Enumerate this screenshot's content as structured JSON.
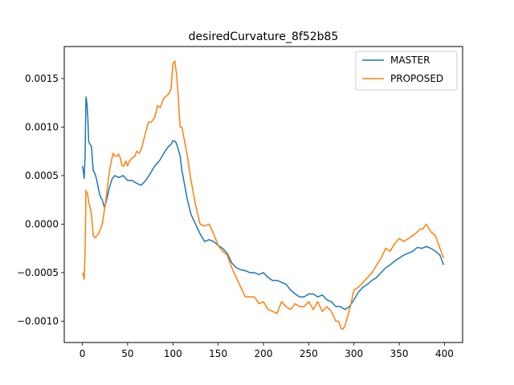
{
  "chart_data": {
    "type": "line",
    "title": "desiredCurvature_8f52b85",
    "xlabel": "",
    "ylabel": "",
    "xlim": [
      -20,
      420
    ],
    "ylim": [
      -0.00122,
      0.00183
    ],
    "xticks": [
      0,
      50,
      100,
      150,
      200,
      250,
      300,
      350,
      400
    ],
    "xtick_labels": [
      "0",
      "50",
      "100",
      "150",
      "200",
      "250",
      "300",
      "350",
      "400"
    ],
    "yticks": [
      -0.001,
      -0.0005,
      0.0,
      0.0005,
      0.001,
      0.0015
    ],
    "ytick_labels": [
      "−0.0010",
      "−0.0005",
      "0.0000",
      "0.0005",
      "0.0010",
      "0.0015"
    ],
    "grid": false,
    "legend_position": "top-right",
    "series": [
      {
        "name": "MASTER",
        "color": "#1f77b4",
        "x": [
          0,
          1,
          2,
          3,
          4,
          5,
          6,
          7,
          8,
          10,
          12,
          14,
          16,
          18,
          20,
          22,
          24,
          26,
          28,
          30,
          33,
          36,
          40,
          45,
          50,
          55,
          60,
          65,
          70,
          75,
          80,
          85,
          90,
          95,
          98,
          100,
          103,
          105,
          108,
          110,
          113,
          116,
          120,
          125,
          130,
          135,
          140,
          145,
          150,
          155,
          160,
          165,
          170,
          175,
          180,
          185,
          190,
          195,
          200,
          205,
          210,
          215,
          220,
          225,
          230,
          235,
          240,
          245,
          250,
          255,
          260,
          265,
          270,
          275,
          280,
          285,
          290,
          295,
          300,
          305,
          310,
          315,
          320,
          325,
          330,
          335,
          340,
          345,
          350,
          355,
          360,
          365,
          370,
          375,
          380,
          385,
          390,
          395,
          399
        ],
        "y": [
          0.0006,
          0.00055,
          0.00047,
          0.0007,
          0.00131,
          0.00125,
          0.0011,
          0.00085,
          0.00083,
          0.0008,
          0.00055,
          0.00052,
          0.00045,
          0.00035,
          0.00028,
          0.00025,
          0.00018,
          0.00022,
          0.0003,
          0.00038,
          0.00047,
          0.0005,
          0.00048,
          0.0005,
          0.00045,
          0.00045,
          0.00042,
          0.0004,
          0.00045,
          0.00052,
          0.0006,
          0.00065,
          0.00073,
          0.0008,
          0.00082,
          0.00086,
          0.00085,
          0.0008,
          0.0007,
          0.00055,
          0.0004,
          0.00025,
          0.0001,
          0.0,
          -0.0001,
          -0.00018,
          -0.00016,
          -0.00018,
          -0.00022,
          -0.00025,
          -0.0003,
          -0.0004,
          -0.00045,
          -0.00047,
          -0.00048,
          -0.0005,
          -0.0005,
          -0.00052,
          -0.0005,
          -0.00055,
          -0.00058,
          -0.00058,
          -0.0006,
          -0.00062,
          -0.00068,
          -0.00072,
          -0.00075,
          -0.00075,
          -0.00072,
          -0.00072,
          -0.00075,
          -0.00073,
          -0.00078,
          -0.0008,
          -0.00085,
          -0.00085,
          -0.00088,
          -0.00085,
          -0.00078,
          -0.0007,
          -0.00065,
          -0.00062,
          -0.00058,
          -0.00055,
          -0.0005,
          -0.00045,
          -0.00042,
          -0.00038,
          -0.00035,
          -0.00032,
          -0.0003,
          -0.00028,
          -0.00024,
          -0.00025,
          -0.00023,
          -0.00025,
          -0.00028,
          -0.00032,
          -0.00042
        ]
      },
      {
        "name": "PROPOSED",
        "color": "#ff7f0e",
        "x": [
          0,
          1,
          2,
          3,
          4,
          5,
          6,
          7,
          8,
          10,
          12,
          14,
          16,
          18,
          20,
          22,
          24,
          26,
          28,
          30,
          32,
          34,
          36,
          38,
          40,
          42,
          44,
          46,
          48,
          50,
          52,
          55,
          58,
          60,
          63,
          66,
          70,
          73,
          76,
          80,
          83,
          86,
          90,
          93,
          96,
          98,
          100,
          102,
          104,
          106,
          108,
          110,
          113,
          116,
          120,
          125,
          130,
          135,
          140,
          145,
          150,
          155,
          160,
          165,
          170,
          175,
          180,
          185,
          190,
          195,
          200,
          205,
          210,
          215,
          220,
          225,
          230,
          235,
          240,
          245,
          250,
          255,
          260,
          265,
          270,
          275,
          280,
          283,
          286,
          288,
          290,
          293,
          296,
          300,
          305,
          310,
          315,
          320,
          325,
          330,
          335,
          340,
          345,
          350,
          355,
          360,
          365,
          370,
          373,
          376,
          380,
          385,
          390,
          395,
          399
        ],
        "y": [
          -0.0005,
          -0.00052,
          -0.00057,
          -0.0003,
          0.00035,
          0.00032,
          0.0003,
          0.00022,
          0.0002,
          0.0001,
          -0.00012,
          -0.00014,
          -0.00012,
          -0.0001,
          -5e-05,
          0.0,
          0.00012,
          0.00025,
          0.0004,
          0.00055,
          0.00065,
          0.00073,
          0.0007,
          0.0007,
          0.00072,
          0.00068,
          0.0006,
          0.0006,
          0.00065,
          0.0006,
          0.00065,
          0.00068,
          0.0007,
          0.00075,
          0.00073,
          0.0008,
          0.00095,
          0.00105,
          0.00105,
          0.0011,
          0.00122,
          0.0012,
          0.0013,
          0.00132,
          0.00135,
          0.0014,
          0.00165,
          0.00168,
          0.00155,
          0.0013,
          0.001,
          0.001,
          0.00085,
          0.0007,
          0.00045,
          0.0002,
          0.0,
          -2e-05,
          0.0,
          -0.0001,
          -0.00022,
          -0.00028,
          -0.00032,
          -0.00045,
          -0.00055,
          -0.00065,
          -0.00075,
          -0.00075,
          -0.00075,
          -0.00082,
          -0.0008,
          -0.00088,
          -0.0009,
          -0.00092,
          -0.0008,
          -0.00085,
          -0.00088,
          -0.00082,
          -0.00085,
          -0.00085,
          -0.0008,
          -0.00088,
          -0.0008,
          -0.0009,
          -0.00085,
          -0.0009,
          -0.001,
          -0.001,
          -0.00108,
          -0.00108,
          -0.00105,
          -0.00095,
          -0.00085,
          -0.00068,
          -0.00065,
          -0.0006,
          -0.00055,
          -0.0005,
          -0.00042,
          -0.00035,
          -0.00025,
          -0.00028,
          -0.0002,
          -0.00015,
          -0.00018,
          -0.00015,
          -0.00012,
          -8e-05,
          -5e-05,
          -5e-05,
          -0.0,
          -8e-05,
          -0.00012,
          -0.00025,
          -0.00035
        ]
      }
    ]
  }
}
